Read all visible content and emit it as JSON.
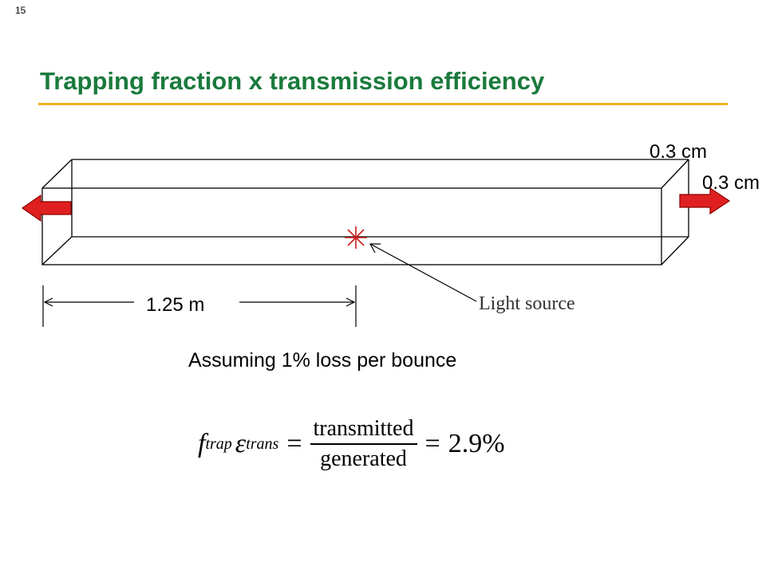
{
  "slide": {
    "number": "15"
  },
  "title": "Trapping fraction x transmission efficiency",
  "diagram": {
    "dim_top": "0.3 cm",
    "dim_right": "0.3 cm",
    "dim_length": "1.25 m",
    "source_label": "Light source"
  },
  "assumption": "Assuming 1% loss per bounce",
  "equation": {
    "f_symbol": "f",
    "f_sub": "trap",
    "eps_symbol": "ε",
    "eps_sub": "trans",
    "equals": "=",
    "numerator": "transmitted",
    "denominator": "generated",
    "result": "2.9%"
  },
  "colors": {
    "title": "#1a7a3c",
    "rule": "#f0b41e",
    "arrow_fill": "#e02020",
    "arrow_stroke": "#8b0000"
  }
}
